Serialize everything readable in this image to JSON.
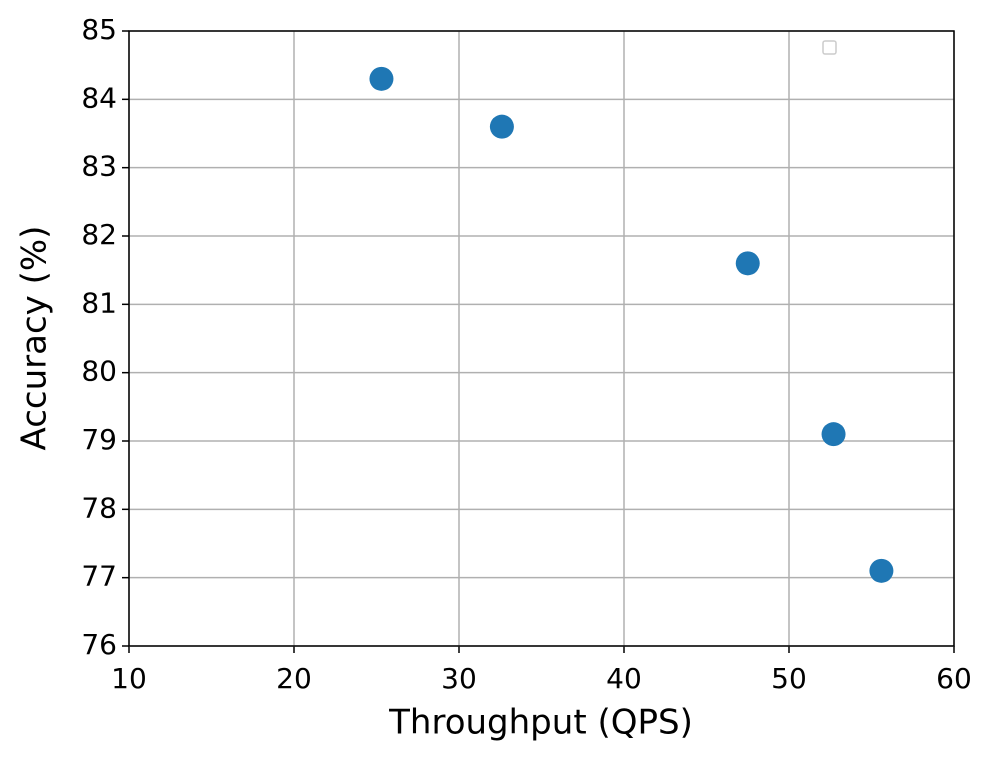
{
  "chart_data": {
    "type": "scatter",
    "xlabel": "Throughput (QPS)",
    "ylabel": "Accuracy (%)",
    "series": [
      {
        "color": "#1f77b4",
        "x": [
          25.3,
          32.6,
          47.5,
          52.7,
          55.6
        ],
        "values": [
          84.3,
          83.6,
          81.6,
          79.1,
          77.1
        ]
      }
    ],
    "xlim": [
      10,
      60
    ],
    "xticks": [
      10,
      20,
      30,
      40,
      50,
      60
    ],
    "ylim": [
      76,
      85
    ],
    "yticks": [
      76,
      77,
      78,
      79,
      80,
      81,
      82,
      83,
      84,
      85
    ],
    "grid": true
  }
}
